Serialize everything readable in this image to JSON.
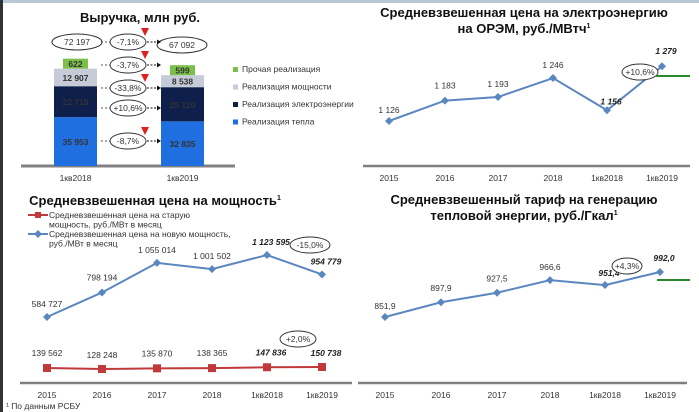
{
  "colors": {
    "heat": "#1f6fe0",
    "electricity": "#0d1f4a",
    "power": "#c6cbd8",
    "other": "#7cc04a",
    "line": "#5b87c0",
    "old_power": "#c0393b",
    "axis": "#808080",
    "target": "#2a8a2a",
    "decline": "#e02020"
  },
  "footnote": "¹ По данным РСБУ",
  "chart_data": [
    {
      "type": "bar",
      "title": "Выручка, млн руб.",
      "stacked": true,
      "categories": [
        "1кв2018",
        "1кв2019"
      ],
      "series": [
        {
          "name": "Реализация тепла",
          "values": [
            35953,
            32835
          ]
        },
        {
          "name": "Реализация электроэнергии",
          "values": [
            22715,
            25120
          ]
        },
        {
          "name": "Реализация мощности",
          "values": [
            12907,
            8538
          ]
        },
        {
          "name": "Прочая реализация",
          "values": [
            622,
            599
          ]
        }
      ],
      "totals": [
        "72 197",
        "67 092"
      ],
      "value_labels": [
        [
          "35 953",
          "22 715",
          "12 907",
          "622"
        ],
        [
          "32 835",
          "25 120",
          "8 538",
          "599"
        ]
      ],
      "changes": [
        "-7,1%",
        "-3,7%",
        "-33,8%",
        "+10,6%",
        "-8,7%"
      ],
      "legend": [
        "Прочая реализация",
        "Реализация мощности",
        "Реализация электроэнергии",
        "Реализация тепла"
      ],
      "legend_position": "right"
    },
    {
      "type": "line",
      "title": "Средневзвешенная цена на электроэнергию",
      "title2": "на ОРЭМ, руб./МВтч",
      "sup": "1",
      "categories": [
        "2015",
        "2016",
        "2017",
        "2018",
        "1кв2018",
        "1кв2019"
      ],
      "values": [
        1126,
        1183,
        1193,
        1246,
        1156,
        1279
      ],
      "labels": [
        "1 126",
        "1 183",
        "1 193",
        "1 246",
        "1 156",
        "1 279"
      ],
      "change": "+10,6%"
    },
    {
      "type": "line",
      "title": "Средневзвешенная цена на мощность",
      "sup": "1",
      "categories": [
        "2015",
        "2016",
        "2017",
        "2018",
        "1кв2018",
        "1кв2019"
      ],
      "series": [
        {
          "name": "Средневзвешенная цена на старую мощность,  руб./МВт в месяц",
          "legend_lines": [
            "Средневзвешенная цена на старую",
            "мощность,  руб./МВт в месяц"
          ],
          "values": [
            139562,
            128248,
            135870,
            138365,
            147836,
            150738
          ],
          "labels": [
            "139 562",
            "128 248",
            "135 870",
            "138 365",
            "147 836",
            "150 738"
          ],
          "change": "+2,0%"
        },
        {
          "name": "Средневзвешенная цена на новую мощность, руб./МВт в месяц",
          "legend_lines": [
            "Средневзвешенная цена на новую мощность,",
            "руб./МВт в месяц"
          ],
          "values": [
            584727,
            798194,
            1055014,
            1001502,
            1123595,
            954779
          ],
          "labels": [
            "584 727",
            "798 194",
            "1 055 014",
            "1 001 502",
            "1 123 595",
            "954 779"
          ],
          "change": "-15,0%"
        }
      ],
      "legend_position": "top-left"
    },
    {
      "type": "line",
      "title": "Средневзвешенный тариф на генерацию",
      "title2": "тепловой энергии, руб./Гкал",
      "sup": "1",
      "categories": [
        "2015",
        "2016",
        "2017",
        "2018",
        "1кв2018",
        "1кв2019"
      ],
      "values": [
        851.9,
        897.9,
        927.5,
        966.6,
        951.4,
        992.0
      ],
      "labels": [
        "851,9",
        "897,9",
        "927,5",
        "966,6",
        "951,4",
        "992,0"
      ],
      "change": "+4,3%"
    }
  ]
}
